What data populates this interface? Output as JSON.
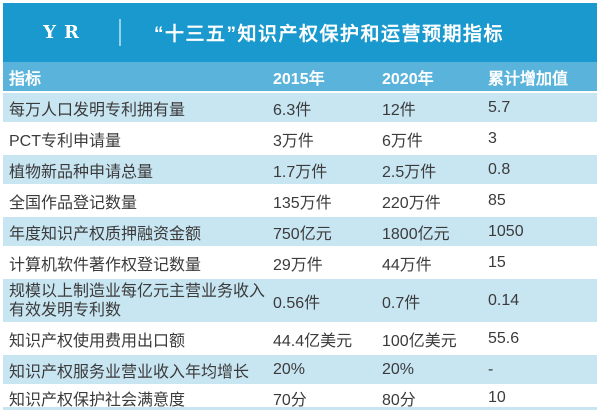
{
  "banner": {
    "logo": "YR"
  },
  "colors": {
    "banner_blue": "#1999CD",
    "table_header_blue": "#5AB3DB",
    "row_light_blue": "#C8E5F2",
    "row_white": "#FFFFFF",
    "text_dark": "#3B3B3B",
    "text_white": "#FFFFFF"
  },
  "chart_data": {
    "type": "table",
    "title": "“十三五”知识产权保护和运营预期指标",
    "columns": [
      "指标",
      "2015年",
      "2020年",
      "累计增加值"
    ],
    "rows": [
      [
        "每万人口发明专利拥有量",
        "6.3件",
        "12件",
        "5.7"
      ],
      [
        "PCT专利申请量",
        "3万件",
        "6万件",
        "3"
      ],
      [
        "植物新品种申请总量",
        "1.7万件",
        "2.5万件",
        "0.8"
      ],
      [
        "全国作品登记数量",
        "135万件",
        "220万件",
        "85"
      ],
      [
        "年度知识产权质押融资金额",
        "750亿元",
        "1800亿元",
        "1050"
      ],
      [
        "计算机软件著作权登记数量",
        "29万件",
        "44万件",
        "15"
      ],
      [
        "规模以上制造业每亿元主营业务收入有效发明专利数",
        "0.56件",
        "0.7件",
        "0.14"
      ],
      [
        "知识产权使用费用出口额",
        "44.4亿美元",
        "100亿美元",
        "55.6"
      ],
      [
        "知识产权服务业营业收入年均增长",
        "20%",
        "20%",
        "-"
      ],
      [
        "知识产权保护社会满意度",
        "70分",
        "80分",
        "10"
      ]
    ]
  }
}
